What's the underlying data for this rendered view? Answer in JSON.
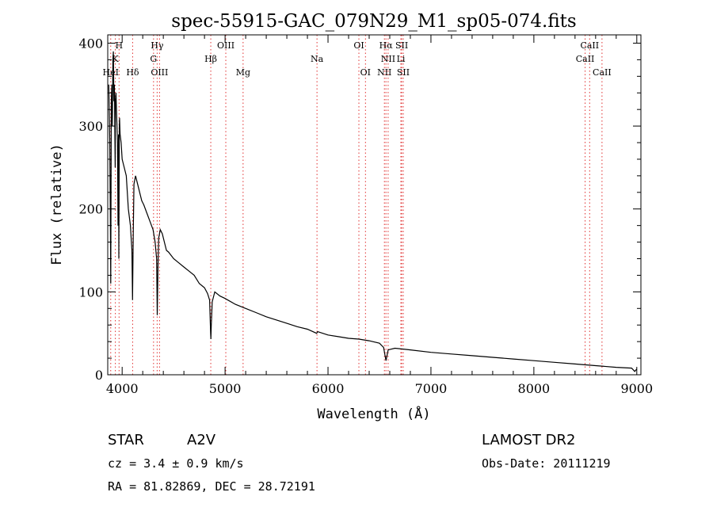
{
  "chart_data": {
    "type": "line",
    "title": "spec-55915-GAC_079N29_M1_sp05-074.fits",
    "xlabel": "Wavelength (Å)",
    "ylabel": "Flux (relative)",
    "xlim": [
      3860,
      9040
    ],
    "ylim": [
      0,
      410
    ],
    "x_ticks": [
      4000,
      5000,
      6000,
      7000,
      8000,
      9000
    ],
    "y_ticks": [
      0,
      100,
      200,
      300,
      400
    ],
    "grid": false,
    "series": [
      {
        "x": [
          3870,
          3880,
          3885,
          3889,
          3895,
          3900,
          3905,
          3910,
          3915,
          3920,
          3925,
          3932,
          3935,
          3940,
          3945,
          3950,
          3955,
          3960,
          3965,
          3968,
          3972,
          3975,
          3980,
          3990,
          4000,
          4020,
          4040,
          4060,
          4080,
          4095,
          4101,
          4108,
          4115,
          4130,
          4150,
          4170,
          4190,
          4210,
          4240,
          4270,
          4300,
          4320,
          4335,
          4341,
          4348,
          4355,
          4370,
          4390,
          4410,
          4430,
          4450,
          4500,
          4550,
          4600,
          4650,
          4700,
          4750,
          4800,
          4830,
          4850,
          4858,
          4862,
          4866,
          4875,
          4900,
          4950,
          5000,
          5100,
          5200,
          5300,
          5400,
          5500,
          5600,
          5700,
          5800,
          5890,
          5900,
          6000,
          6100,
          6200,
          6300,
          6400,
          6500,
          6540,
          6563,
          6585,
          6650,
          6800,
          7000,
          7200,
          7400,
          7600,
          7800,
          8000,
          8200,
          8400,
          8600,
          8800,
          8950,
          8980,
          9000
        ],
        "y": [
          350,
          280,
          200,
          110,
          330,
          350,
          300,
          380,
          390,
          330,
          350,
          250,
          330,
          340,
          320,
          300,
          280,
          180,
          290,
          140,
          300,
          310,
          290,
          280,
          260,
          250,
          240,
          200,
          180,
          150,
          90,
          170,
          230,
          240,
          230,
          220,
          210,
          205,
          195,
          185,
          175,
          160,
          140,
          72,
          130,
          165,
          175,
          170,
          160,
          150,
          148,
          140,
          135,
          130,
          125,
          120,
          110,
          105,
          98,
          90,
          55,
          43,
          60,
          88,
          100,
          95,
          92,
          85,
          80,
          75,
          70,
          66,
          62,
          58,
          55,
          50,
          52,
          48,
          46,
          44,
          43,
          41,
          38,
          33,
          17,
          30,
          32,
          30,
          27,
          25,
          23,
          21,
          19,
          17,
          15,
          13,
          11,
          9,
          8,
          4,
          7
        ]
      }
    ],
    "spectral_lines": [
      {
        "label": "H",
        "x": 3970,
        "row": 0
      },
      {
        "label": "K",
        "x": 3934,
        "row": 1
      },
      {
        "label": "HeI",
        "x": 3889,
        "row": 2
      },
      {
        "label": "Hδ",
        "x": 4102,
        "row": 2
      },
      {
        "label": "Hγ",
        "x": 4340,
        "row": 0
      },
      {
        "label": "G",
        "x": 4305,
        "row": 1
      },
      {
        "label": "OIII",
        "x": 4363,
        "row": 2
      },
      {
        "label": "OIII",
        "x": 5007,
        "row": 0
      },
      {
        "label": "Hβ",
        "x": 4861,
        "row": 1
      },
      {
        "label": "Mg",
        "x": 5175,
        "row": 2
      },
      {
        "label": "Na",
        "x": 5893,
        "row": 1
      },
      {
        "label": "OI",
        "x": 6300,
        "row": 0
      },
      {
        "label": "OI",
        "x": 6364,
        "row": 2
      },
      {
        "label": "Hα",
        "x": 6563,
        "row": 0
      },
      {
        "label": "SII",
        "x": 6716,
        "row": 0
      },
      {
        "label": "NII",
        "x": 6584,
        "row": 1
      },
      {
        "label": "Li",
        "x": 6708,
        "row": 1
      },
      {
        "label": "NII",
        "x": 6548,
        "row": 2
      },
      {
        "label": "SII",
        "x": 6731,
        "row": 2
      },
      {
        "label": "CaII",
        "x": 8542,
        "row": 0
      },
      {
        "label": "CaII",
        "x": 8498,
        "row": 1
      },
      {
        "label": "CaII",
        "x": 8662,
        "row": 2
      }
    ]
  },
  "info": {
    "object_type": "STAR",
    "subclass": "A2V",
    "survey": "LAMOST DR2",
    "cz_line": "cz = 3.4 ± 0.9 km/s",
    "obs_date": "Obs-Date: 20111219",
    "coords": "RA =  81.82869, DEC =  28.72191"
  },
  "colors": {
    "spectrum": "#000000",
    "line_markers": "#e03030",
    "axes": "#000000"
  }
}
